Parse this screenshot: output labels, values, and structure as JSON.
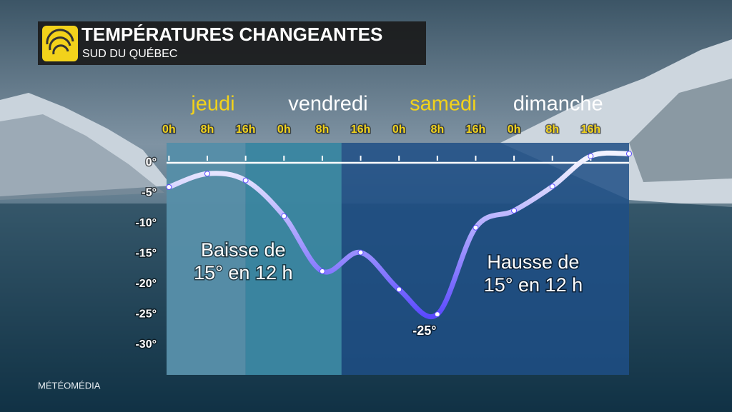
{
  "chart_data": {
    "type": "line",
    "title": "TEMPÉRATURES CHANGEANTES",
    "subtitle": "SUD DU QUÉBEC",
    "brand": "MÉTÉOMÉDIA",
    "days": [
      {
        "name": "jeudi",
        "color": "#f2d21b"
      },
      {
        "name": "vendredi",
        "color": "#ffffff"
      },
      {
        "name": "samedi",
        "color": "#f2d21b"
      },
      {
        "name": "dimanche",
        "color": "#ffffff"
      }
    ],
    "x": [
      0,
      8,
      16,
      24,
      32,
      40,
      48,
      56,
      64,
      72,
      80,
      88,
      96
    ],
    "series": [
      {
        "name": "Température",
        "color": "#5a48ff",
        "values": [
          -4,
          -1.8,
          -2.9,
          -8.8,
          -17.9,
          -14.8,
          -20.9,
          -25,
          -10.7,
          -7.9,
          -3.9,
          1.1,
          1.5
        ],
        "value_labels": [
          null,
          null,
          null,
          null,
          null,
          null,
          null,
          "-25°",
          null,
          null,
          null,
          null,
          null
        ]
      }
    ],
    "xlim": [
      -0.5,
      96
    ],
    "xticks": [
      {
        "value": 0,
        "label": "0h"
      },
      {
        "value": 8,
        "label": "8h"
      },
      {
        "value": 16,
        "label": "16h"
      },
      {
        "value": 24,
        "label": "0h"
      },
      {
        "value": 32,
        "label": "8h"
      },
      {
        "value": 40,
        "label": "16h"
      },
      {
        "value": 48,
        "label": "0h"
      },
      {
        "value": 56,
        "label": "8h"
      },
      {
        "value": 64,
        "label": "16h"
      },
      {
        "value": 72,
        "label": "0h"
      },
      {
        "value": 80,
        "label": "8h"
      },
      {
        "value": 88,
        "label": "16h"
      }
    ],
    "ylim": [
      -35,
      3.3
    ],
    "yticks": [
      {
        "value": 0,
        "label": "0°"
      },
      {
        "value": -5,
        "label": "-5°"
      },
      {
        "value": -10,
        "label": "-10°"
      },
      {
        "value": -15,
        "label": "-15°"
      },
      {
        "value": -20,
        "label": "-20°"
      },
      {
        "value": -25,
        "label": "-25°"
      },
      {
        "value": -30,
        "label": "-30°"
      }
    ],
    "zero_line": true,
    "regions": [
      {
        "from": -0.5,
        "to": 16,
        "color": "#5f98ad"
      },
      {
        "from": 16,
        "to": 36,
        "color": "#3f8ea5"
      }
    ],
    "plot_color": "#1f4f86",
    "annotations": [
      {
        "lines": [
          "Baisse de",
          "15° en 12 h"
        ],
        "x": 15.5,
        "y": -16.5
      },
      {
        "lines": [
          "Hausse de",
          "15° en 12 h"
        ],
        "x": 76,
        "y": -18.5
      }
    ]
  }
}
